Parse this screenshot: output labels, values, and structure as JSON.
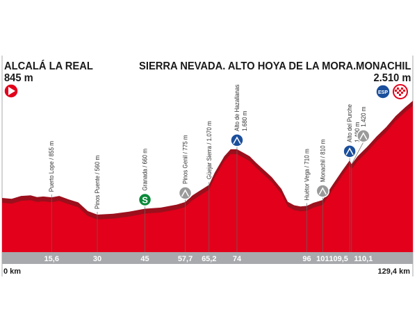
{
  "start": {
    "name": "ALCALÁ LA REAL",
    "altitude": "845 m",
    "icon": "start-play-icon"
  },
  "finish": {
    "name": "SIERRA NEVADA. ALTO HOYA DE LA MORA.MONACHIL",
    "altitude": "2.510 m",
    "icons": [
      "esp-category-icon",
      "finish-checkered-icon"
    ]
  },
  "colors": {
    "profile": "#e2001a",
    "band": "#9c0f1c",
    "axis": "#a7a9ac",
    "green": "#0a8a3a",
    "blue": "#1b4f9c",
    "gray": "#9a9a9a"
  },
  "chart_data": {
    "type": "area",
    "xlabel_start": "0 km",
    "xlabel_end": "129,4 km",
    "xlim": [
      0,
      129.4
    ],
    "ylim": [
      0,
      2600
    ],
    "profile": [
      [
        0,
        845
      ],
      [
        3,
        830
      ],
      [
        6,
        880
      ],
      [
        9,
        890
      ],
      [
        11,
        860
      ],
      [
        13,
        870
      ],
      [
        15.6,
        855
      ],
      [
        18,
        880
      ],
      [
        21,
        820
      ],
      [
        24,
        770
      ],
      [
        27,
        620
      ],
      [
        30,
        560
      ],
      [
        35,
        575
      ],
      [
        40,
        610
      ],
      [
        45,
        660
      ],
      [
        50,
        680
      ],
      [
        55,
        730
      ],
      [
        57.7,
        775
      ],
      [
        60,
        890
      ],
      [
        62,
        960
      ],
      [
        65.2,
        1070
      ],
      [
        67,
        1280
      ],
      [
        70,
        1560
      ],
      [
        72,
        1680
      ],
      [
        74,
        1680
      ],
      [
        76,
        1620
      ],
      [
        78,
        1560
      ],
      [
        80,
        1450
      ],
      [
        82,
        1350
      ],
      [
        85,
        1200
      ],
      [
        88,
        1000
      ],
      [
        90,
        780
      ],
      [
        92,
        720
      ],
      [
        94,
        700
      ],
      [
        96,
        710
      ],
      [
        98,
        760
      ],
      [
        101,
        810
      ],
      [
        104,
        1060
      ],
      [
        107,
        1300
      ],
      [
        109.5,
        1490
      ],
      [
        110.1,
        1420
      ],
      [
        112,
        1560
      ],
      [
        115,
        1720
      ],
      [
        118,
        1900
      ],
      [
        121,
        2060
      ],
      [
        124,
        2250
      ],
      [
        127,
        2400
      ],
      [
        129.4,
        2510
      ]
    ],
    "points": [
      {
        "km": 15.6,
        "km_label": "15,6",
        "label": "Puerto Lope / 855 m",
        "elev": 855,
        "icon": ""
      },
      {
        "km": 30,
        "km_label": "30",
        "label": "Pinos Puente / 560 m",
        "elev": 560,
        "icon": ""
      },
      {
        "km": 45,
        "km_label": "45",
        "label": "Granada / 660 m",
        "elev": 660,
        "icon": "sprint-icon",
        "icon_text": "S"
      },
      {
        "km": 57.7,
        "km_label": "57,7",
        "label": "Pinos Genil / 775 m",
        "elev": 775,
        "icon": "third-category-climb-icon"
      },
      {
        "km": 65.2,
        "km_label": "65,2",
        "label": "Güejar Sierra / 1.070 m",
        "elev": 1070,
        "icon": ""
      },
      {
        "km": 74,
        "km_label": "74",
        "label": "Alto de Hazallanas",
        "label2": "1.680 m",
        "elev": 1680,
        "icon": "first-category-climb-icon"
      },
      {
        "km": 96,
        "km_label": "96",
        "label": "Huétor Vega / 710 m",
        "elev": 710,
        "icon": ""
      },
      {
        "km": 101,
        "km_label": "101",
        "label": "Monachil / 810 m",
        "elev": 810,
        "icon": "third-category-climb-icon"
      },
      {
        "km": 109.5,
        "km_label": "109,5",
        "label": "Alto del Purche",
        "label2": "1.490 m",
        "elev": 1490,
        "icon": "first-category-climb-icon"
      },
      {
        "km": 110.1,
        "km_label": "110,1",
        "label": "1.420 m",
        "elev": 1420,
        "icon": "third-category-climb-icon"
      }
    ]
  }
}
